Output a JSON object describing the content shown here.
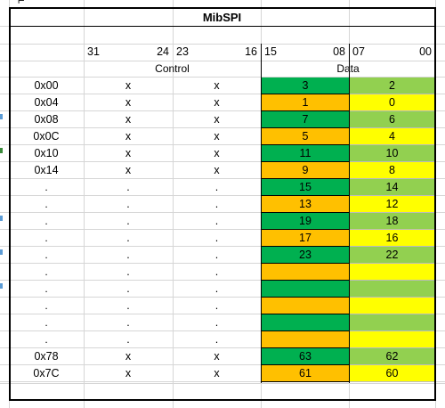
{
  "sheet": {
    "title": "MibSPI",
    "bit_labels": [
      "31",
      "24",
      "23",
      "16",
      "15",
      "08",
      "07",
      "00"
    ],
    "section_labels": {
      "control": "Control",
      "data": "Data"
    },
    "rows": [
      {
        "addr": "0x00",
        "c1": "x",
        "c2": "x",
        "hi": "3",
        "lo": "2",
        "hi_color": "#00b050",
        "lo_color": "#92d050"
      },
      {
        "addr": "0x04",
        "c1": "x",
        "c2": "x",
        "hi": "1",
        "lo": "0",
        "hi_color": "#ffc000",
        "lo_color": "#ffff00"
      },
      {
        "addr": "0x08",
        "c1": "x",
        "c2": "x",
        "hi": "7",
        "lo": "6",
        "hi_color": "#00b050",
        "lo_color": "#92d050"
      },
      {
        "addr": "0x0C",
        "c1": "x",
        "c2": "x",
        "hi": "5",
        "lo": "4",
        "hi_color": "#ffc000",
        "lo_color": "#ffff00"
      },
      {
        "addr": "0x10",
        "c1": "x",
        "c2": "x",
        "hi": "11",
        "lo": "10",
        "hi_color": "#00b050",
        "lo_color": "#92d050"
      },
      {
        "addr": "0x14",
        "c1": "x",
        "c2": "x",
        "hi": "9",
        "lo": "8",
        "hi_color": "#ffc000",
        "lo_color": "#ffff00"
      },
      {
        "addr": ".",
        "c1": ".",
        "c2": ".",
        "hi": "15",
        "lo": "14",
        "hi_color": "#00b050",
        "lo_color": "#92d050"
      },
      {
        "addr": ".",
        "c1": ".",
        "c2": ".",
        "hi": "13",
        "lo": "12",
        "hi_color": "#ffc000",
        "lo_color": "#ffff00"
      },
      {
        "addr": ".",
        "c1": ".",
        "c2": ".",
        "hi": "19",
        "lo": "18",
        "hi_color": "#00b050",
        "lo_color": "#92d050"
      },
      {
        "addr": ".",
        "c1": ".",
        "c2": ".",
        "hi": "17",
        "lo": "16",
        "hi_color": "#ffc000",
        "lo_color": "#ffff00"
      },
      {
        "addr": ".",
        "c1": ".",
        "c2": ".",
        "hi": "23",
        "lo": "22",
        "hi_color": "#00b050",
        "lo_color": "#92d050"
      },
      {
        "addr": ".",
        "c1": ".",
        "c2": ".",
        "hi": "",
        "lo": "",
        "hi_color": "#ffc000",
        "lo_color": "#ffff00"
      },
      {
        "addr": ".",
        "c1": ".",
        "c2": ".",
        "hi": "",
        "lo": "",
        "hi_color": "#00b050",
        "lo_color": "#92d050"
      },
      {
        "addr": ".",
        "c1": ".",
        "c2": ".",
        "hi": "",
        "lo": "",
        "hi_color": "#ffc000",
        "lo_color": "#ffff00"
      },
      {
        "addr": ".",
        "c1": ".",
        "c2": ".",
        "hi": "",
        "lo": "",
        "hi_color": "#00b050",
        "lo_color": "#92d050"
      },
      {
        "addr": ".",
        "c1": ".",
        "c2": ".",
        "hi": "",
        "lo": "",
        "hi_color": "#ffc000",
        "lo_color": "#ffff00"
      },
      {
        "addr": "0x78",
        "c1": "x",
        "c2": "x",
        "hi": "63",
        "lo": "62",
        "hi_color": "#00b050",
        "lo_color": "#92d050"
      },
      {
        "addr": "0x7C",
        "c1": "x",
        "c2": "x",
        "hi": "61",
        "lo": "60",
        "hi_color": "#ffc000",
        "lo_color": "#ffff00"
      }
    ]
  }
}
